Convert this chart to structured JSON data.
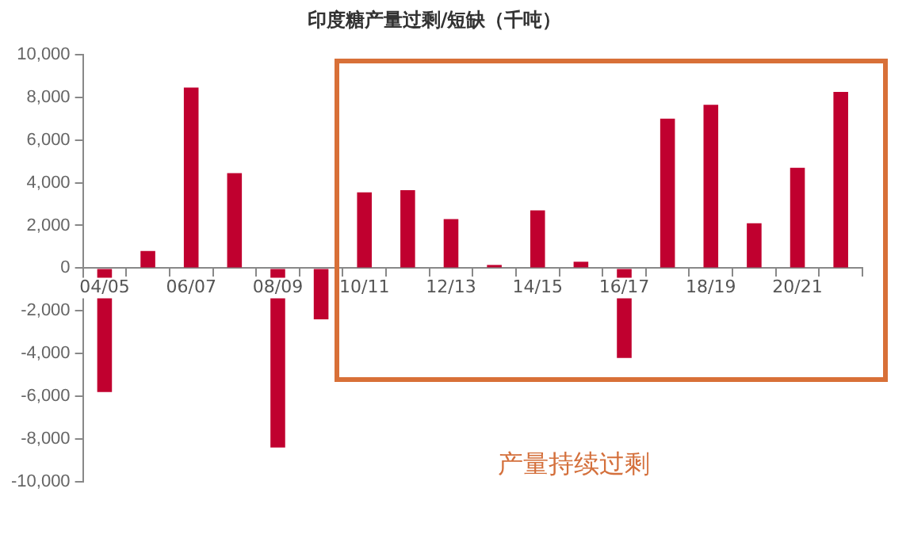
{
  "chart_data": {
    "type": "bar",
    "title": "印度糖产量过剩/短缺（千吨）",
    "categories": [
      "04/05",
      null,
      "06/07",
      null,
      "08/09",
      null,
      "10/11",
      null,
      "12/13",
      null,
      "14/15",
      null,
      "16/17",
      null,
      "18/19",
      null,
      "20/21",
      null
    ],
    "values": [
      -5800,
      800,
      8450,
      4450,
      -8400,
      -2400,
      3550,
      3650,
      2300,
      150,
      2700,
      300,
      -4200,
      7000,
      7650,
      2100,
      4700,
      8250
    ],
    "color": "#c0002f",
    "ylim": [
      -10000,
      10000
    ],
    "yticks": [
      {
        "value": -10000,
        "label": "-10,000"
      },
      {
        "value": -8000,
        "label": "-8,000"
      },
      {
        "value": -6000,
        "label": "-6,000"
      },
      {
        "value": -4000,
        "label": "-4,000"
      },
      {
        "value": -2000,
        "label": "-2,000"
      },
      0,
      {
        "value": 2000,
        "label": "2,000"
      },
      {
        "value": 4000,
        "label": "4,000"
      },
      {
        "value": 6000,
        "label": "6,000"
      },
      {
        "value": 8000,
        "label": "8,000"
      },
      {
        "value": 10000,
        "label": "10,000"
      }
    ],
    "grid": false,
    "annotations": [
      "产量持续过剩"
    ]
  }
}
